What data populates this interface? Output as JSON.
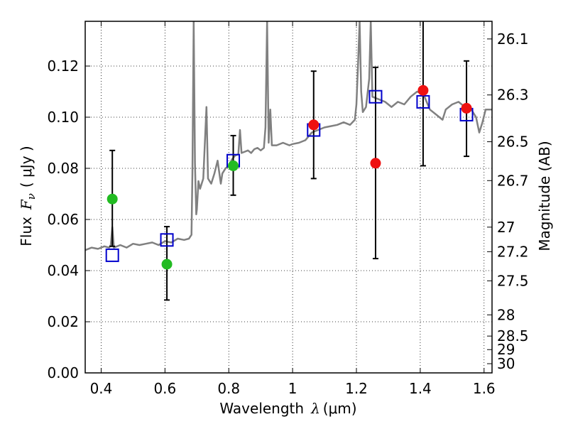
{
  "chart_data": {
    "type": "scatter",
    "title": "",
    "xlabel": {
      "text": "Wavelength",
      "symbol": "λ",
      "unit": "(μm)"
    },
    "ylabel": {
      "text": "Flux",
      "symbol": "F",
      "subscript": "ν",
      "unit": "( μJy )"
    },
    "y2label": "Magnitude (AB)",
    "xlim": [
      0.35,
      1.625
    ],
    "ylim": [
      0.0,
      0.1375
    ],
    "x_ticks": [
      0.4,
      0.6,
      0.8,
      1.0,
      1.2,
      1.4,
      1.6
    ],
    "x_tick_labels": [
      "0.4",
      "0.6",
      "0.8",
      "1",
      "1.2",
      "1.4",
      "1.6"
    ],
    "y_ticks": [
      0.0,
      0.02,
      0.04,
      0.06,
      0.08,
      0.1,
      0.12
    ],
    "y_tick_labels": [
      "0.00",
      "0.02",
      "0.04",
      "0.06",
      "0.08",
      "0.10",
      "0.12"
    ],
    "y2_ticks": [
      {
        "label": "26.1",
        "flux": 0.1306
      },
      {
        "label": "26.3",
        "flux": 0.1087
      },
      {
        "label": "26.5",
        "flux": 0.0904
      },
      {
        "label": "26.7",
        "flux": 0.0752
      },
      {
        "label": "27",
        "flux": 0.057
      },
      {
        "label": "27.2",
        "flux": 0.0474
      },
      {
        "label": "27.5",
        "flux": 0.036
      },
      {
        "label": "28",
        "flux": 0.0227
      },
      {
        "label": "28.5",
        "flux": 0.0144
      },
      {
        "label": "29",
        "flux": 0.0091
      },
      {
        "label": "30",
        "flux": 0.0036
      }
    ],
    "grid": true,
    "colors": {
      "model": "#808080",
      "green_points": "#22bb22",
      "red_points": "#ee1111",
      "squares": "#0000cc",
      "errorbars": "#000000"
    },
    "series": [
      {
        "marker": "circle",
        "color": "green",
        "points": [
          {
            "x": 0.435,
            "y": 0.068,
            "yerr_low": 0.0495,
            "yerr_high": 0.087
          },
          {
            "x": 0.606,
            "y": 0.0425,
            "yerr_low": 0.0285,
            "yerr_high": 0.0572
          },
          {
            "x": 0.814,
            "y": 0.081,
            "yerr_low": 0.0695,
            "yerr_high": 0.0928
          }
        ]
      },
      {
        "marker": "circle",
        "color": "red",
        "points": [
          {
            "x": 1.066,
            "y": 0.097,
            "yerr_low": 0.076,
            "yerr_high": 0.118
          },
          {
            "x": 1.26,
            "y": 0.082,
            "yerr_low": 0.0447,
            "yerr_high": 0.1195
          },
          {
            "x": 1.409,
            "y": 0.1105,
            "yerr_low": 0.081,
            "yerr_high": 0.14
          },
          {
            "x": 1.545,
            "y": 0.1035,
            "yerr_low": 0.0847,
            "yerr_high": 0.122
          }
        ]
      },
      {
        "marker": "open-square",
        "color": "blue",
        "points": [
          {
            "x": 0.435,
            "y": 0.046
          },
          {
            "x": 0.606,
            "y": 0.052
          },
          {
            "x": 0.814,
            "y": 0.083
          },
          {
            "x": 1.066,
            "y": 0.095
          },
          {
            "x": 1.26,
            "y": 0.108
          },
          {
            "x": 1.409,
            "y": 0.106
          },
          {
            "x": 1.545,
            "y": 0.101
          }
        ]
      },
      {
        "marker": "line",
        "color": "gray",
        "points": [
          [
            0.35,
            0.048
          ],
          [
            0.37,
            0.049
          ],
          [
            0.39,
            0.0485
          ],
          [
            0.41,
            0.0495
          ],
          [
            0.425,
            0.049
          ],
          [
            0.43,
            0.05
          ],
          [
            0.435,
            0.057
          ],
          [
            0.44,
            0.049
          ],
          [
            0.46,
            0.05
          ],
          [
            0.48,
            0.049
          ],
          [
            0.5,
            0.0505
          ],
          [
            0.52,
            0.05
          ],
          [
            0.54,
            0.0505
          ],
          [
            0.56,
            0.051
          ],
          [
            0.58,
            0.05
          ],
          [
            0.6,
            0.0515
          ],
          [
            0.62,
            0.051
          ],
          [
            0.64,
            0.0525
          ],
          [
            0.66,
            0.052
          ],
          [
            0.675,
            0.0525
          ],
          [
            0.683,
            0.054
          ],
          [
            0.686,
            0.078
          ],
          [
            0.69,
            0.1375
          ],
          [
            0.694,
            0.082
          ],
          [
            0.698,
            0.062
          ],
          [
            0.7,
            0.064
          ],
          [
            0.705,
            0.075
          ],
          [
            0.71,
            0.072
          ],
          [
            0.72,
            0.076
          ],
          [
            0.73,
            0.104
          ],
          [
            0.735,
            0.076
          ],
          [
            0.745,
            0.074
          ],
          [
            0.755,
            0.078
          ],
          [
            0.765,
            0.083
          ],
          [
            0.775,
            0.074
          ],
          [
            0.78,
            0.078
          ],
          [
            0.79,
            0.08
          ],
          [
            0.8,
            0.081
          ],
          [
            0.81,
            0.0835
          ],
          [
            0.82,
            0.085
          ],
          [
            0.83,
            0.0855
          ],
          [
            0.835,
            0.095
          ],
          [
            0.84,
            0.086
          ],
          [
            0.85,
            0.0865
          ],
          [
            0.86,
            0.087
          ],
          [
            0.87,
            0.086
          ],
          [
            0.88,
            0.0875
          ],
          [
            0.89,
            0.088
          ],
          [
            0.9,
            0.087
          ],
          [
            0.91,
            0.088
          ],
          [
            0.915,
            0.096
          ],
          [
            0.92,
            0.1375
          ],
          [
            0.925,
            0.09
          ],
          [
            0.93,
            0.103
          ],
          [
            0.935,
            0.089
          ],
          [
            0.95,
            0.089
          ],
          [
            0.97,
            0.09
          ],
          [
            0.99,
            0.089
          ],
          [
            1.0,
            0.0895
          ],
          [
            1.02,
            0.09
          ],
          [
            1.04,
            0.091
          ],
          [
            1.06,
            0.094
          ],
          [
            1.08,
            0.095
          ],
          [
            1.1,
            0.096
          ],
          [
            1.12,
            0.0965
          ],
          [
            1.14,
            0.097
          ],
          [
            1.16,
            0.098
          ],
          [
            1.18,
            0.097
          ],
          [
            1.195,
            0.099
          ],
          [
            1.2,
            0.105
          ],
          [
            1.205,
            0.12
          ],
          [
            1.21,
            0.1375
          ],
          [
            1.215,
            0.11
          ],
          [
            1.22,
            0.102
          ],
          [
            1.23,
            0.104
          ],
          [
            1.24,
            0.115
          ],
          [
            1.245,
            0.1375
          ],
          [
            1.25,
            0.108
          ],
          [
            1.27,
            0.107
          ],
          [
            1.29,
            0.106
          ],
          [
            1.31,
            0.104
          ],
          [
            1.33,
            0.106
          ],
          [
            1.35,
            0.105
          ],
          [
            1.37,
            0.108
          ],
          [
            1.39,
            0.11
          ],
          [
            1.41,
            0.109
          ],
          [
            1.43,
            0.103
          ],
          [
            1.45,
            0.101
          ],
          [
            1.47,
            0.099
          ],
          [
            1.48,
            0.103
          ],
          [
            1.5,
            0.105
          ],
          [
            1.52,
            0.106
          ],
          [
            1.54,
            0.104
          ],
          [
            1.56,
            0.103
          ],
          [
            1.575,
            0.1
          ],
          [
            1.585,
            0.094
          ],
          [
            1.595,
            0.098
          ],
          [
            1.605,
            0.103
          ],
          [
            1.625,
            0.103
          ]
        ]
      }
    ]
  }
}
